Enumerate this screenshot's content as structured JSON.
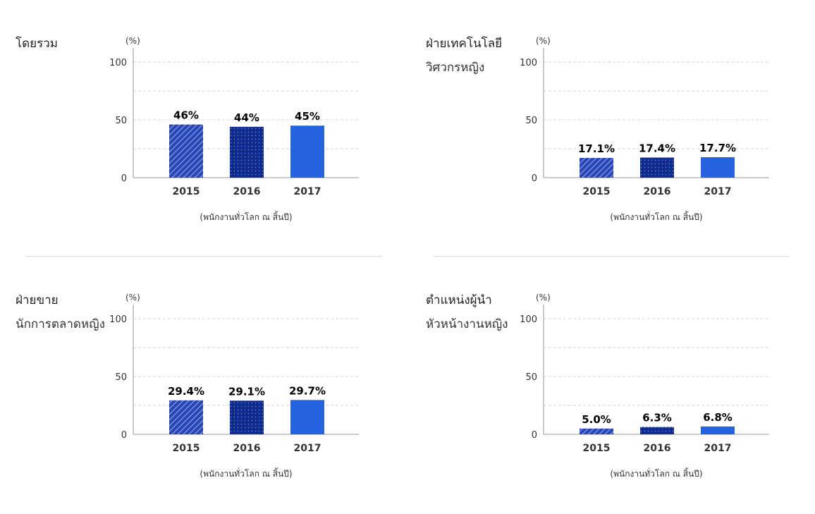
{
  "chart_data": [
    {
      "type": "bar",
      "title": "โดยรวม",
      "subtitle": "",
      "unit": "(%)",
      "categories": [
        "2015",
        "2016",
        "2017"
      ],
      "values": [
        46,
        44,
        45
      ],
      "value_labels": [
        "46%",
        "44%",
        "45%"
      ],
      "xlabel": "(พนักงานทั่วโลก ณ สิ้นปี)",
      "yticks": [
        "0",
        "50",
        "100"
      ],
      "ylim": [
        0,
        110
      ],
      "grid": true,
      "colors": [
        "#2746b8",
        "#0e2c8f",
        "#2563e0"
      ]
    },
    {
      "type": "bar",
      "title": "ฝ่ายเทคโนโลยี",
      "subtitle": "วิศวกรหญิง",
      "unit": "(%)",
      "categories": [
        "2015",
        "2016",
        "2017"
      ],
      "values": [
        17.1,
        17.4,
        17.7
      ],
      "value_labels": [
        "17.1%",
        "17.4%",
        "17.7%"
      ],
      "xlabel": "(พนักงานทั่วโลก ณ สิ้นปี)",
      "yticks": [
        "0",
        "50",
        "100"
      ],
      "ylim": [
        0,
        110
      ],
      "grid": true,
      "colors": [
        "#2746b8",
        "#0e2c8f",
        "#2563e0"
      ]
    },
    {
      "type": "bar",
      "title": "ฝ่ายขาย",
      "subtitle": "นักการตลาดหญิง",
      "unit": "(%)",
      "categories": [
        "2015",
        "2016",
        "2017"
      ],
      "values": [
        29.4,
        29.1,
        29.7
      ],
      "value_labels": [
        "29.4%",
        "29.1%",
        "29.7%"
      ],
      "xlabel": "(พนักงานทั่วโลก ณ สิ้นปี)",
      "yticks": [
        "0",
        "50",
        "100"
      ],
      "ylim": [
        0,
        110
      ],
      "grid": true,
      "colors": [
        "#2746b8",
        "#0e2c8f",
        "#2563e0"
      ]
    },
    {
      "type": "bar",
      "title": "ตำแหน่งผู้นำ",
      "subtitle": "หัวหน้างานหญิง",
      "unit": "(%)",
      "categories": [
        "2015",
        "2016",
        "2017"
      ],
      "values": [
        5.0,
        6.3,
        6.8
      ],
      "value_labels": [
        "5.0%",
        "6.3%",
        "6.8%"
      ],
      "xlabel": "(พนักงานทั่วโลก ณ สิ้นปี)",
      "yticks": [
        "0",
        "50",
        "100"
      ],
      "ylim": [
        0,
        110
      ],
      "grid": true,
      "colors": [
        "#2746b8",
        "#0e2c8f",
        "#2563e0"
      ]
    }
  ]
}
